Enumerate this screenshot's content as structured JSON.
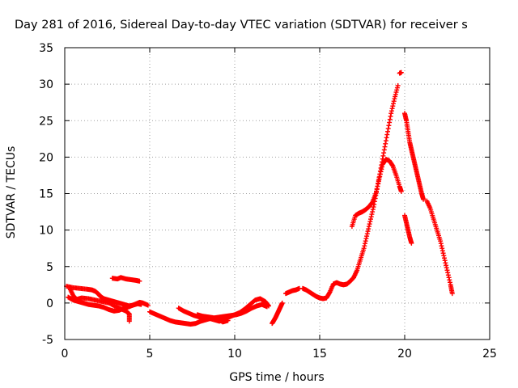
{
  "chart_data": {
    "type": "scatter",
    "title": "Day 281 of 2016, Sidereal Day-to-day VTEC variation (SDTVAR) for receiver s",
    "xlabel": "GPS time / hours",
    "ylabel": "SDTVAR / TECUs",
    "xlim": [
      0,
      25
    ],
    "ylim": [
      -5,
      35
    ],
    "xticks": [
      "0",
      "5",
      "10",
      "15",
      "20",
      "25"
    ],
    "yticks": [
      "-5",
      "0",
      "5",
      "10",
      "15",
      "20",
      "25",
      "30",
      "35"
    ],
    "grid": true,
    "marker": "plus",
    "color": "#ff0000",
    "series": [
      {
        "segments": [
          [
            [
              0.1,
              2.3
            ],
            [
              0.5,
              2.1
            ],
            [
              0.9,
              2.0
            ],
            [
              1.3,
              1.9
            ],
            [
              1.6,
              1.8
            ],
            [
              1.8,
              1.6
            ],
            [
              2.0,
              1.2
            ],
            [
              2.1,
              0.9
            ],
            [
              2.3,
              0.6
            ],
            [
              2.6,
              0.4
            ],
            [
              2.9,
              0.2
            ],
            [
              3.2,
              0.0
            ],
            [
              3.5,
              -0.2
            ],
            [
              3.8,
              -0.4
            ],
            [
              4.0,
              -0.3
            ],
            [
              4.3,
              -0.1
            ],
            [
              4.5,
              -0.2
            ]
          ],
          [
            [
              0.2,
              0.8
            ],
            [
              0.5,
              0.4
            ],
            [
              0.8,
              0.2
            ],
            [
              1.1,
              0.0
            ],
            [
              1.4,
              -0.2
            ],
            [
              1.7,
              -0.3
            ],
            [
              2.0,
              -0.4
            ],
            [
              2.3,
              -0.6
            ],
            [
              2.6,
              -0.9
            ],
            [
              2.9,
              -1.1
            ],
            [
              3.2,
              -1.0
            ],
            [
              3.5,
              -0.7
            ],
            [
              3.8,
              -0.5
            ],
            [
              4.1,
              -0.2
            ],
            [
              4.4,
              0.1
            ],
            [
              4.6,
              0.0
            ],
            [
              4.9,
              -0.3
            ]
          ],
          [
            [
              0.3,
              2.0
            ],
            [
              0.5,
              1.0
            ],
            [
              0.7,
              0.5
            ],
            [
              1.0,
              0.7
            ],
            [
              1.4,
              0.6
            ],
            [
              1.8,
              0.4
            ],
            [
              2.2,
              0.2
            ],
            [
              2.6,
              0.0
            ],
            [
              3.0,
              -0.5
            ],
            [
              3.3,
              -0.8
            ],
            [
              3.6,
              -1.1
            ],
            [
              3.8,
              -1.5
            ],
            [
              3.8,
              -2.5
            ]
          ],
          [
            [
              2.8,
              3.4
            ],
            [
              3.1,
              3.3
            ],
            [
              3.3,
              3.5
            ],
            [
              3.6,
              3.3
            ],
            [
              3.9,
              3.2
            ],
            [
              4.2,
              3.1
            ],
            [
              4.4,
              3.0
            ]
          ],
          [
            [
              5.0,
              -1.2
            ],
            [
              5.3,
              -1.5
            ],
            [
              5.6,
              -1.8
            ],
            [
              5.9,
              -2.1
            ],
            [
              6.2,
              -2.4
            ],
            [
              6.5,
              -2.6
            ],
            [
              6.8,
              -2.7
            ],
            [
              7.1,
              -2.8
            ],
            [
              7.4,
              -2.9
            ],
            [
              7.7,
              -2.8
            ],
            [
              8.0,
              -2.5
            ],
            [
              8.3,
              -2.3
            ],
            [
              8.6,
              -2.1
            ],
            [
              8.9,
              -2.0
            ],
            [
              9.2,
              -1.9
            ],
            [
              9.5,
              -1.8
            ],
            [
              9.8,
              -1.7
            ],
            [
              10.1,
              -1.6
            ],
            [
              10.4,
              -1.4
            ],
            [
              10.7,
              -1.1
            ],
            [
              11.0,
              -0.7
            ],
            [
              11.3,
              -0.4
            ],
            [
              11.6,
              -0.2
            ],
            [
              11.9,
              -0.5
            ]
          ],
          [
            [
              6.7,
              -0.7
            ],
            [
              7.0,
              -1.1
            ],
            [
              7.3,
              -1.4
            ],
            [
              7.6,
              -1.7
            ],
            [
              7.9,
              -1.9
            ],
            [
              8.2,
              -2.0
            ],
            [
              8.5,
              -2.1
            ],
            [
              8.8,
              -2.3
            ],
            [
              9.1,
              -2.5
            ],
            [
              9.4,
              -2.2
            ],
            [
              9.7,
              -1.9
            ],
            [
              10.0,
              -1.6
            ],
            [
              10.3,
              -1.3
            ],
            [
              10.6,
              -0.8
            ],
            [
              10.9,
              -0.2
            ],
            [
              11.2,
              0.4
            ],
            [
              11.5,
              0.6
            ],
            [
              11.8,
              0.2
            ],
            [
              12.0,
              -0.4
            ]
          ],
          [
            [
              7.8,
              -1.6
            ],
            [
              8.1,
              -1.8
            ],
            [
              8.4,
              -1.9
            ],
            [
              8.7,
              -2.0
            ],
            [
              9.0,
              -2.2
            ],
            [
              9.3,
              -2.6
            ],
            [
              9.6,
              -2.4
            ]
          ],
          [
            [
              12.2,
              -2.8
            ],
            [
              12.3,
              -2.4
            ],
            [
              12.4,
              -2.0
            ],
            [
              12.5,
              -1.5
            ],
            [
              12.6,
              -1.0
            ],
            [
              12.7,
              -0.5
            ],
            [
              12.8,
              0.0
            ]
          ],
          [
            [
              13.0,
              1.3
            ],
            [
              13.2,
              1.5
            ],
            [
              13.4,
              1.7
            ],
            [
              13.6,
              1.8
            ],
            [
              13.8,
              2.0
            ]
          ],
          [
            [
              14.0,
              2.0
            ],
            [
              14.2,
              1.8
            ],
            [
              14.4,
              1.5
            ],
            [
              14.6,
              1.2
            ],
            [
              14.8,
              0.9
            ],
            [
              15.0,
              0.7
            ],
            [
              15.2,
              0.6
            ],
            [
              15.4,
              0.7
            ],
            [
              15.6,
              1.5
            ],
            [
              15.8,
              2.6
            ],
            [
              16.0,
              2.8
            ],
            [
              16.2,
              2.6
            ],
            [
              16.4,
              2.5
            ],
            [
              16.6,
              2.6
            ],
            [
              16.8,
              3.0
            ],
            [
              17.0,
              3.5
            ],
            [
              17.2,
              4.5
            ],
            [
              17.4,
              6.0
            ],
            [
              17.6,
              7.5
            ],
            [
              17.8,
              9.5
            ],
            [
              18.0,
              11.5
            ],
            [
              18.2,
              13.5
            ],
            [
              18.4,
              16.0
            ],
            [
              18.6,
              18.5
            ],
            [
              18.8,
              21.0
            ],
            [
              19.0,
              23.5
            ],
            [
              19.2,
              26.0
            ],
            [
              19.4,
              28.0
            ],
            [
              19.6,
              29.8
            ]
          ],
          [
            [
              16.9,
              10.5
            ],
            [
              17.1,
              12.0
            ],
            [
              17.3,
              12.3
            ],
            [
              17.5,
              12.5
            ],
            [
              17.7,
              12.8
            ],
            [
              17.9,
              13.2
            ],
            [
              18.1,
              13.8
            ],
            [
              18.3,
              15.0
            ],
            [
              18.5,
              17.0
            ],
            [
              18.7,
              19.0
            ],
            [
              18.9,
              19.7
            ],
            [
              19.1,
              19.5
            ],
            [
              19.3,
              18.8
            ],
            [
              19.5,
              17.5
            ],
            [
              19.7,
              16.0
            ],
            [
              19.8,
              15.3
            ]
          ],
          [
            [
              19.7,
              31.5
            ],
            [
              19.8,
              31.6
            ]
          ],
          [
            [
              20.0,
              26.0
            ],
            [
              20.1,
              25.0
            ],
            [
              20.2,
              23.5
            ],
            [
              20.3,
              22.0
            ],
            [
              20.4,
              21.0
            ],
            [
              20.5,
              20.0
            ],
            [
              20.6,
              19.0
            ],
            [
              20.7,
              18.0
            ],
            [
              20.8,
              17.0
            ],
            [
              20.9,
              16.0
            ],
            [
              21.0,
              15.0
            ],
            [
              21.1,
              14.2
            ]
          ],
          [
            [
              20.0,
              12.0
            ],
            [
              20.1,
              11.0
            ],
            [
              20.2,
              10.0
            ],
            [
              20.3,
              9.0
            ],
            [
              20.4,
              8.2
            ]
          ],
          [
            [
              21.3,
              14.0
            ],
            [
              21.5,
              13.0
            ],
            [
              21.7,
              11.5
            ],
            [
              21.9,
              10.0
            ],
            [
              22.1,
              8.5
            ],
            [
              22.3,
              6.5
            ],
            [
              22.5,
              4.5
            ],
            [
              22.7,
              2.5
            ],
            [
              22.8,
              1.3
            ]
          ]
        ]
      }
    ]
  }
}
